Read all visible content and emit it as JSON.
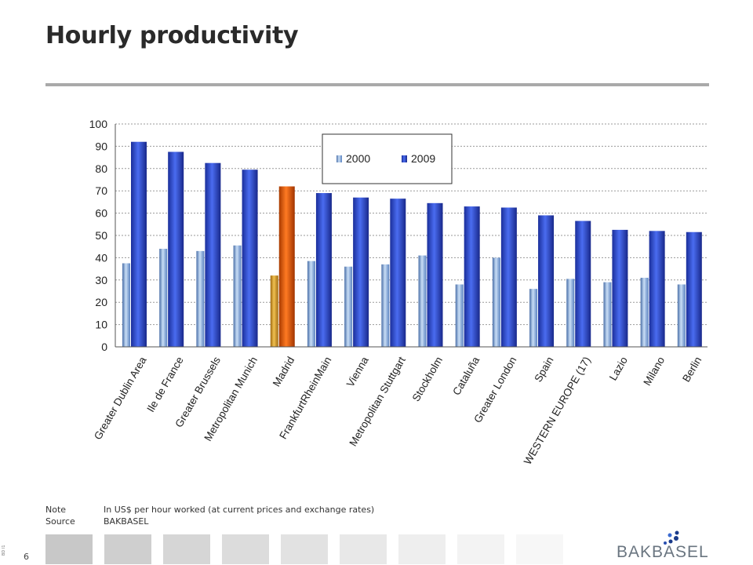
{
  "page": {
    "title": "Hourly productivity",
    "page_number": "6",
    "side_code": "BD I1",
    "note_label": "Note",
    "note_text": "In US$ per hour worked (at current prices and exchange rates)",
    "source_label": "Source",
    "source_text": "BAKBASEL",
    "logo_text": "BAKBASEL"
  },
  "colors": {
    "series_2000": "#8fb6e6",
    "series_2009": "#2e4fd6",
    "highlight_2000": "#d9a020",
    "highlight_2009": "#e85a10",
    "title_rule": "#a9a9a9",
    "grid": "#9a9a9a"
  },
  "footer_square_colors": [
    "#c8c8c8",
    "#cfcfcf",
    "#d6d6d6",
    "#dcdcdc",
    "#e2e2e2",
    "#e8e8e8",
    "#eeeeee",
    "#f3f3f3",
    "#f7f7f7"
  ],
  "chart_data": {
    "type": "bar",
    "title": "",
    "xlabel": "",
    "ylabel": "",
    "ylim": [
      0,
      100
    ],
    "yticks": [
      0,
      10,
      20,
      30,
      40,
      50,
      60,
      70,
      80,
      90,
      100
    ],
    "grid": true,
    "legend_position": "top-center",
    "highlight_category": "Madrid",
    "categories": [
      "Greater Dublin Area",
      "Ile de France",
      "Greater Brussels",
      "Metropolitan Munich",
      "Madrid",
      "FrankfurtRheinMain",
      "Vienna",
      "Metropolitan Stuttgart",
      "Stockholm",
      "Cataluña",
      "Greater London",
      "Spain",
      "WESTERN EUROPE (17)",
      "Lazio",
      "Milano",
      "Berlin"
    ],
    "series": [
      {
        "name": "2000",
        "values": [
          37.5,
          44,
          43,
          45.5,
          32,
          38.5,
          36,
          37,
          41,
          28,
          40,
          26,
          30.5,
          29,
          31,
          28
        ]
      },
      {
        "name": "2009",
        "values": [
          92,
          87.5,
          82.5,
          79.5,
          72,
          69,
          67,
          66.5,
          64.5,
          63,
          62.5,
          59,
          56.5,
          52.5,
          52,
          51.5
        ]
      }
    ]
  }
}
